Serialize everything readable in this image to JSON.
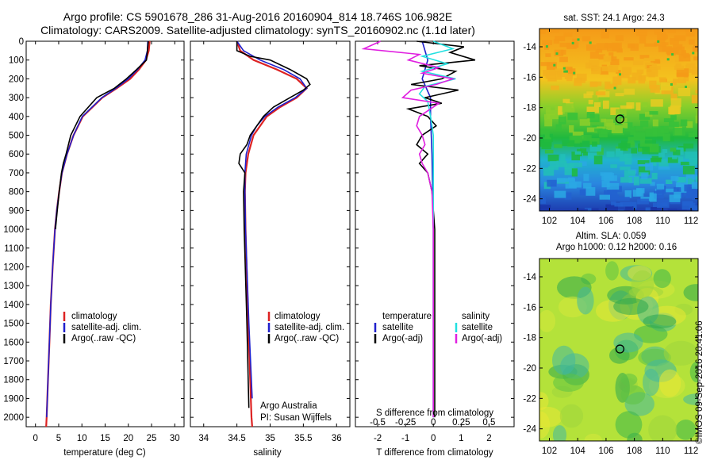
{
  "title_line1": "Argo profile: CS 5901678_286 31-Aug-2016 20160904_814 18.746S 106.982E",
  "title_line2": "Climatology: CARS2009. Satellite-adjusted climatology: synTS_20160902.nc (1.1d later)",
  "colors": {
    "climatology": "#dd2222",
    "satellite": "#1f1fcc",
    "argo": "#000000",
    "sal_satellite": "#22e0e0",
    "sal_argo": "#e020e0"
  },
  "chart_data": [
    {
      "type": "line",
      "id": "temperature",
      "xlabel": "temperature (deg C)",
      "ylabel": "",
      "xlim": [
        -2,
        32
      ],
      "ylim": [
        2050,
        0
      ],
      "x_ticks": [
        "0",
        "5",
        "10",
        "15",
        "20",
        "25",
        "30"
      ],
      "y_ticks": [
        "0",
        "100",
        "200",
        "300",
        "400",
        "500",
        "600",
        "700",
        "800",
        "900",
        "1000",
        "1100",
        "1200",
        "1300",
        "1400",
        "1500",
        "1600",
        "1700",
        "1800",
        "1900",
        "2000"
      ],
      "legend": [
        "climatology",
        "satellite-adj. clim.",
        "Argo(..raw -QC)"
      ],
      "legend_placement": "center-right",
      "series": [
        {
          "name": "climatology",
          "color": "#dd2222",
          "depth": [
            0,
            50,
            100,
            150,
            200,
            250,
            300,
            400,
            500,
            600,
            700,
            800,
            900,
            1000,
            1200,
            1400,
            1600,
            1800,
            2000,
            2050
          ],
          "values": [
            24.6,
            24.4,
            23.8,
            22.3,
            20.4,
            17.5,
            14.4,
            10.2,
            8.2,
            6.8,
            5.7,
            5.1,
            4.6,
            4.2,
            3.7,
            3.3,
            3.0,
            2.7,
            2.4,
            2.3
          ]
        },
        {
          "name": "satellite-adj. clim.",
          "color": "#1f1fcc",
          "depth": [
            0,
            50,
            100,
            150,
            200,
            250,
            300,
            400,
            500,
            600,
            700,
            800,
            900,
            1000,
            1200,
            1400,
            1600,
            1800,
            2000
          ],
          "values": [
            24.2,
            24.1,
            23.6,
            22.0,
            20.0,
            17.3,
            14.3,
            10.1,
            8.2,
            6.8,
            5.7,
            5.1,
            4.6,
            4.2,
            3.7,
            3.3,
            3.0,
            2.7,
            2.4
          ]
        },
        {
          "name": "Argo(..raw -QC)",
          "color": "#000000",
          "depth": [
            0,
            50,
            100,
            150,
            200,
            250,
            300,
            400,
            500,
            600,
            650,
            700,
            800,
            900,
            1000
          ],
          "values": [
            24.3,
            24.1,
            23.9,
            21.8,
            19.6,
            17.0,
            13.2,
            9.6,
            7.6,
            6.6,
            6.0,
            5.6,
            5.1,
            4.7,
            4.3
          ]
        }
      ]
    },
    {
      "type": "line",
      "id": "salinity",
      "xlabel": "salinity",
      "xlim": [
        33.8,
        36.2
      ],
      "ylim": [
        2050,
        0
      ],
      "x_ticks": [
        "34",
        "34.5",
        "35",
        "35.5",
        "36"
      ],
      "legend": [
        "climatology",
        "satellite-adj. clim.",
        "Argo(..raw -QC)"
      ],
      "legend_placement": "center-right",
      "annotation": [
        "Argo Australia",
        "PI: Susan Wijffels"
      ],
      "series": [
        {
          "name": "climatology",
          "color": "#dd2222",
          "depth": [
            0,
            50,
            100,
            150,
            200,
            250,
            300,
            350,
            400,
            450,
            500,
            600,
            700,
            800,
            1000,
            1500,
            2000,
            2050
          ],
          "values": [
            34.5,
            34.55,
            34.75,
            35.1,
            35.4,
            35.55,
            35.4,
            35.15,
            34.95,
            34.85,
            34.75,
            34.67,
            34.63,
            34.62,
            34.63,
            34.67,
            34.72,
            34.73
          ]
        },
        {
          "name": "satellite-adj. clim.",
          "color": "#1f1fcc",
          "depth": [
            0,
            50,
            100,
            150,
            200,
            250,
            300,
            350,
            400,
            450,
            500,
            600,
            700,
            800,
            1000,
            1500,
            1900
          ],
          "values": [
            34.5,
            34.6,
            34.85,
            35.2,
            35.45,
            35.55,
            35.38,
            35.12,
            34.92,
            34.8,
            34.72,
            34.64,
            34.62,
            34.62,
            34.63,
            34.68,
            34.73
          ]
        },
        {
          "name": "Argo(..raw -QC)",
          "color": "#000000",
          "depth": [
            0,
            50,
            80,
            100,
            150,
            200,
            230,
            260,
            300,
            350,
            400,
            450,
            500,
            550,
            600,
            650,
            700,
            800,
            1000,
            1500,
            1950
          ],
          "values": [
            34.5,
            34.5,
            34.7,
            35.0,
            35.3,
            35.55,
            35.6,
            35.5,
            35.3,
            35.05,
            34.9,
            34.8,
            34.7,
            34.65,
            34.55,
            34.53,
            34.62,
            34.6,
            34.61,
            34.65,
            34.68
          ]
        }
      ]
    },
    {
      "type": "line",
      "id": "difference",
      "xlabel": "T difference from climatology",
      "xlabel_top": "S difference from climatology",
      "xlim": [
        -2.8,
        2.9
      ],
      "ylim": [
        2050,
        0
      ],
      "x_ticks": [
        "-2",
        "-1",
        "0",
        "1",
        "2"
      ],
      "x_ticks_top": [
        "-0.5",
        "-0.25",
        "0",
        "0.25",
        "0.5"
      ],
      "legend_temperature_title": "temperature",
      "legend_salinity_title": "salinity",
      "legend": [
        "satellite",
        "Argo(-adj)",
        "satellite",
        "Argo(-adj)"
      ],
      "series": [
        {
          "name": "temperature satellite",
          "color": "#1f1fcc",
          "depth": [
            0,
            50,
            100,
            150,
            200,
            300,
            400,
            600,
            1000,
            2000
          ],
          "values": [
            -0.4,
            -0.3,
            -0.2,
            -0.3,
            -0.4,
            -0.1,
            -0.1,
            -0.05,
            0,
            0
          ]
        },
        {
          "name": "temperature Argo(-adj)",
          "color": "#000000",
          "depth": [
            0,
            30,
            60,
            100,
            130,
            160,
            200,
            230,
            260,
            300,
            330,
            360,
            400,
            450,
            500,
            550,
            600,
            650,
            700,
            800,
            1000,
            1500,
            2000
          ],
          "values": [
            -0.6,
            1.1,
            0.6,
            1.5,
            -0.5,
            0.8,
            0.3,
            -0.8,
            0.9,
            -0.3,
            0.3,
            -0.9,
            -0.2,
            0.1,
            -0.4,
            -0.6,
            -0.2,
            -0.5,
            -0.2,
            -0.05,
            0.05,
            0.05,
            0.05
          ]
        },
        {
          "name": "salinity satellite",
          "color": "#22e0e0",
          "depth": [
            0,
            40,
            80,
            120,
            160,
            200,
            240,
            280,
            320,
            400,
            500,
            700,
            1000,
            2000
          ],
          "values": [
            0,
            0.7,
            -0.4,
            0.5,
            -0.4,
            0.8,
            -0.3,
            -0.5,
            -0.2,
            -0.1,
            0,
            0,
            0,
            0
          ]
        },
        {
          "name": "salinity Argo(-adj)",
          "color": "#e020e0",
          "depth": [
            0,
            40,
            70,
            100,
            140,
            170,
            200,
            230,
            260,
            300,
            330,
            400,
            450,
            500,
            550,
            600,
            650,
            700,
            800,
            1000,
            1500,
            2000
          ],
          "values": [
            -1.9,
            -2.5,
            -0.5,
            -0.9,
            0.2,
            -0.4,
            0.7,
            0.1,
            -0.8,
            -1.1,
            0.2,
            -0.5,
            -0.6,
            -0.4,
            -0.3,
            -0.5,
            -0.4,
            -0.2,
            -0.05,
            0,
            0,
            0
          ]
        }
      ]
    },
    {
      "type": "heatmap",
      "id": "sst_map",
      "title": "sat. SST: 24.1  Argo: 24.3",
      "xlim": [
        101.3,
        112.5
      ],
      "ylim": [
        -24.8,
        -12.8
      ],
      "x_ticks": [
        "102",
        "104",
        "106",
        "108",
        "110",
        "112"
      ],
      "y_ticks": [
        "-14",
        "-16",
        "-18",
        "-20",
        "-22",
        "-24"
      ],
      "marker": {
        "lon": 106.98,
        "lat": -18.75
      }
    },
    {
      "type": "heatmap",
      "id": "sla_map",
      "title_line1": "Altim. SLA: 0.059",
      "title_line2": "Argo h1000: 0.12 h2000: 0.16",
      "xlim": [
        101.3,
        112.5
      ],
      "ylim": [
        -24.8,
        -12.8
      ],
      "x_ticks": [
        "102",
        "104",
        "106",
        "108",
        "110",
        "112"
      ],
      "y_ticks": [
        "-14",
        "-16",
        "-18",
        "-20",
        "-22",
        "-24"
      ],
      "marker": {
        "lon": 106.98,
        "lat": -18.75
      }
    }
  ],
  "timestamp": "©IMOS 09-Sep-2016 20:41:06"
}
